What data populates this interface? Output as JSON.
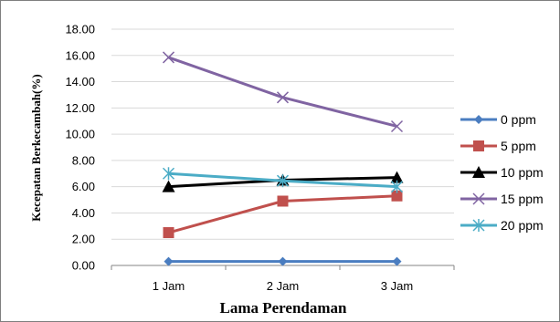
{
  "chart_data": {
    "type": "line",
    "title": "",
    "xlabel": "Lama Perendaman",
    "ylabel": "Kecepatan Berkecambah(%)",
    "categories": [
      "1 Jam",
      "2 Jam",
      "3 Jam"
    ],
    "ylim": [
      0,
      18
    ],
    "y_ticks": [
      "0.00",
      "2.00",
      "4.00",
      "6.00",
      "8.00",
      "10.00",
      "12.00",
      "14.00",
      "16.00",
      "18.00"
    ],
    "grid": "horizontal",
    "legend_position": "right",
    "series": [
      {
        "name": "0 ppm",
        "values": [
          0.3,
          0.3,
          0.3
        ],
        "color": "#4a7dc0",
        "marker": "diamond"
      },
      {
        "name": "5 ppm",
        "values": [
          2.5,
          4.9,
          5.3
        ],
        "color": "#c0504d",
        "marker": "square"
      },
      {
        "name": "10 ppm",
        "values": [
          6.0,
          6.5,
          6.7
        ],
        "color": "#000000",
        "marker": "triangle"
      },
      {
        "name": "15 ppm",
        "values": [
          15.85,
          12.8,
          10.6
        ],
        "color": "#8064a2",
        "marker": "x"
      },
      {
        "name": "20 ppm",
        "values": [
          7.0,
          6.45,
          6.0
        ],
        "color": "#4bacc6",
        "marker": "star"
      }
    ]
  }
}
